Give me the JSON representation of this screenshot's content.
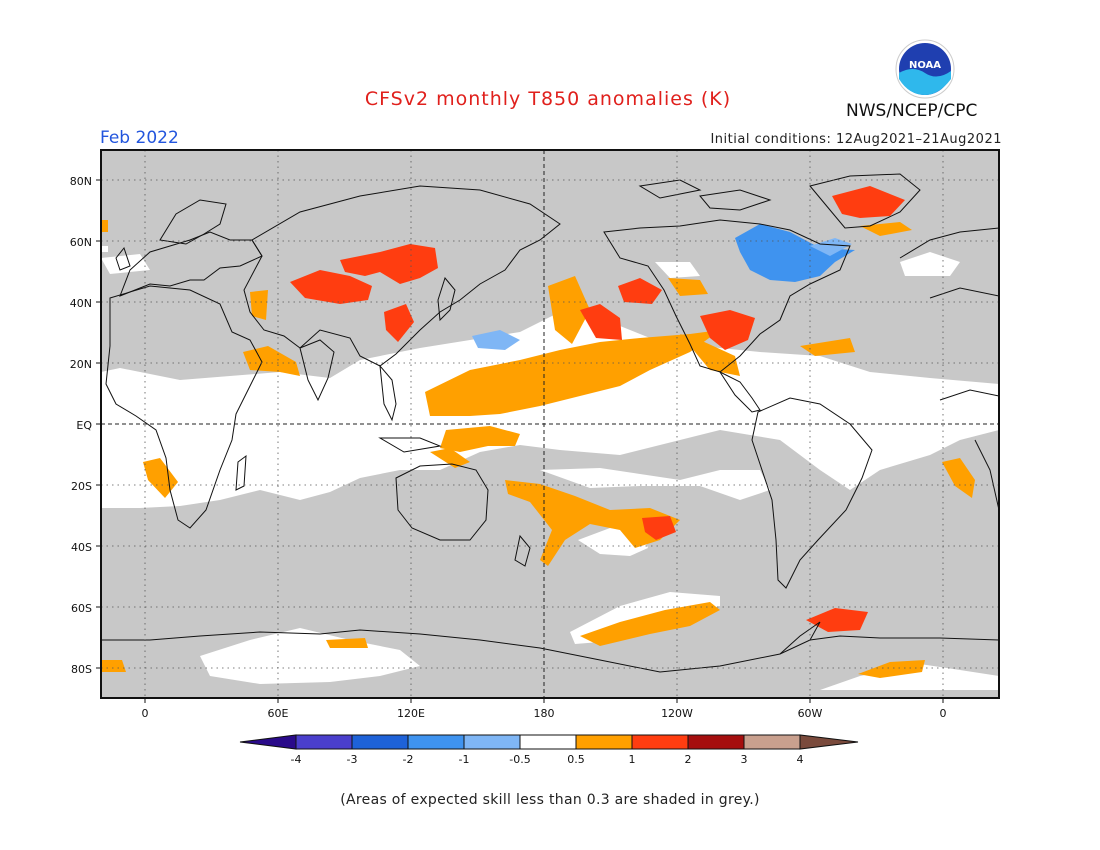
{
  "header": {
    "title": "CFSv2 monthly T850 anomalies (K)",
    "agency": "NWS/NCEP/CPC",
    "logo_text": "NOAA",
    "valid_month": "Feb 2022",
    "initial_conditions": "Initial conditions: 12Aug2021–21Aug2021"
  },
  "map": {
    "lat_labels": [
      "80N",
      "60N",
      "40N",
      "20N",
      "EQ",
      "20S",
      "40S",
      "60S",
      "80S"
    ],
    "lon_labels": [
      "0",
      "60E",
      "120E",
      "180",
      "120W",
      "60W",
      "0"
    ],
    "projection": "equirectangular, -20 to 380 longitude"
  },
  "colorbar": {
    "ticks": [
      "-4",
      "-3",
      "-2",
      "-1",
      "-0.5",
      "0.5",
      "1",
      "2",
      "3",
      "4"
    ],
    "colors": {
      "below_-4": "#2a0a8a",
      "-4_-3": "#4a3fcc",
      "-3_-2": "#1e62d8",
      "-2_-1": "#3f93ef",
      "-1_-0.5": "#7fb6f5",
      "-0.5_0.5": "#ffffff",
      "0.5_1": "#ffa000",
      "1_2": "#ff3d10",
      "2_3": "#a50e0e",
      "3_4": "#c9a08e",
      "above_4": "#7a4a3c"
    },
    "grey_skill_mask": "#c8c8c8"
  },
  "footnote": "(Areas of expected skill less than 0.3 are shaded in grey.)"
}
